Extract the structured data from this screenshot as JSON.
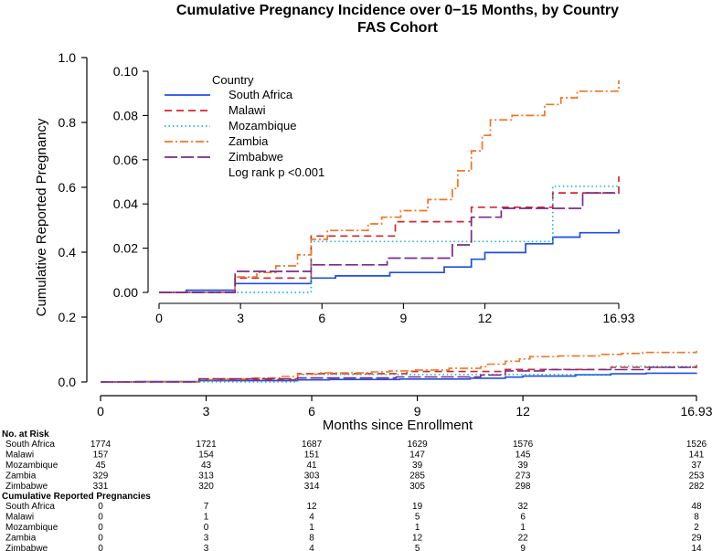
{
  "chart_data": {
    "type": "line",
    "title": "Cumulative Pregnancy Incidence over 0−15 Months, by Country",
    "subtitle": "FAS Cohort",
    "xlabel": "Months since Enrollment",
    "ylabel": "Cumulative Reported Pregnancy",
    "xlim": [
      0,
      16.93
    ],
    "ylim": [
      0,
      1.0
    ],
    "x_ticks": [
      0,
      3,
      6,
      9,
      12,
      16.93
    ],
    "x_tick_labels": [
      "0",
      "3",
      "6",
      "9",
      "12",
      "16.93"
    ],
    "y_ticks": [
      0,
      0.2,
      0.4,
      0.6,
      0.8,
      1.0
    ],
    "y_tick_labels": [
      "0.0",
      "0.2",
      "0.4",
      "0.6",
      "0.8",
      "1.0"
    ],
    "inset": {
      "xlim": [
        0,
        16.93
      ],
      "ylim": [
        0,
        0.1
      ],
      "x_ticks": [
        0,
        3,
        6,
        9,
        12,
        16.93
      ],
      "x_tick_labels": [
        "0",
        "3",
        "6",
        "9",
        "12",
        "16.93"
      ],
      "y_ticks": [
        0,
        0.02,
        0.04,
        0.06,
        0.08,
        0.1
      ],
      "y_tick_labels": [
        "0.00",
        "0.02",
        "0.04",
        "0.06",
        "0.08",
        "0.10"
      ]
    },
    "legend_title": "Country",
    "legend_note": "Log rank p <0.001",
    "series": [
      {
        "name": "South Africa",
        "color": "#1f4fe0",
        "dash": "",
        "x": [
          0,
          1,
          2.8,
          5.6,
          6.5,
          8.5,
          10.5,
          11.5,
          12,
          13.5,
          14.5,
          15.5,
          16.93
        ],
        "y": [
          0,
          0.001,
          0.004,
          0.0065,
          0.0075,
          0.009,
          0.0115,
          0.015,
          0.018,
          0.022,
          0.025,
          0.027,
          0.0285
        ]
      },
      {
        "name": "Malawi",
        "color": "#d62728",
        "dash": "8,5",
        "x": [
          0,
          2.8,
          5.6,
          8.7,
          11.5,
          14.5,
          16.93
        ],
        "y": [
          0,
          0.0065,
          0.0255,
          0.032,
          0.0385,
          0.045,
          0.0525
        ]
      },
      {
        "name": "Mozambique",
        "color": "#22b6c9",
        "dash": "1.5,3",
        "x": [
          0,
          5.6,
          14.5,
          16.93
        ],
        "y": [
          0,
          0.023,
          0.048,
          0.048
        ]
      },
      {
        "name": "Zambia",
        "color": "#f27522",
        "dash": "9,3,2,3",
        "x": [
          0,
          2.8,
          3.6,
          4.3,
          5.1,
          5.6,
          6.2,
          7.7,
          8.2,
          8.9,
          9.9,
          10.8,
          11.0,
          11.5,
          11.9,
          12.2,
          13.0,
          14.2,
          14.8,
          15.4,
          16.93
        ],
        "y": [
          0,
          0.007,
          0.009,
          0.012,
          0.017,
          0.024,
          0.028,
          0.031,
          0.034,
          0.037,
          0.042,
          0.047,
          0.055,
          0.064,
          0.071,
          0.078,
          0.08,
          0.085,
          0.088,
          0.091,
          0.096
        ]
      },
      {
        "name": "Zimbabwe",
        "color": "#7b2a8c",
        "dash": "14,4",
        "x": [
          0,
          2.8,
          5.6,
          8.4,
          10.8,
          11.5,
          12.6,
          15.6,
          16.93
        ],
        "y": [
          0,
          0.0095,
          0.0125,
          0.0155,
          0.0215,
          0.034,
          0.038,
          0.045,
          0.045
        ]
      }
    ]
  },
  "risk_table": {
    "at_risk_header": "No. at Risk",
    "pregnancies_header": "Cumulative Reported Pregnancies",
    "at_risk_rows": [
      {
        "country": "South Africa",
        "values": [
          "1774",
          "1721",
          "1687",
          "1629",
          "1576",
          "1526"
        ]
      },
      {
        "country": "Malawi",
        "values": [
          "157",
          "154",
          "151",
          "147",
          "145",
          "141"
        ]
      },
      {
        "country": "Mozambique",
        "values": [
          "45",
          "43",
          "41",
          "39",
          "39",
          "37"
        ]
      },
      {
        "country": "Zambia",
        "values": [
          "329",
          "313",
          "303",
          "285",
          "273",
          "253"
        ]
      },
      {
        "country": "Zimbabwe",
        "values": [
          "331",
          "320",
          "314",
          "305",
          "298",
          "282"
        ]
      }
    ],
    "pregnancy_rows": [
      {
        "country": "South Africa",
        "values": [
          "0",
          "7",
          "12",
          "19",
          "32",
          "48"
        ]
      },
      {
        "country": "Malawi",
        "values": [
          "0",
          "1",
          "4",
          "5",
          "6",
          "8"
        ]
      },
      {
        "country": "Mozambique",
        "values": [
          "0",
          "0",
          "1",
          "1",
          "1",
          "2"
        ]
      },
      {
        "country": "Zambia",
        "values": [
          "0",
          "3",
          "8",
          "12",
          "22",
          "29"
        ]
      },
      {
        "country": "Zimbabwe",
        "values": [
          "0",
          "3",
          "4",
          "5",
          "9",
          "14"
        ]
      }
    ]
  }
}
